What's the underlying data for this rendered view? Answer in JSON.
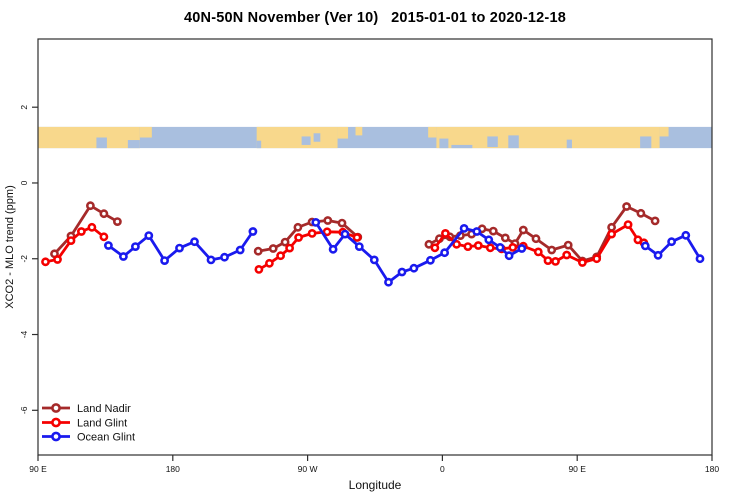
{
  "title": "40N-50N November (Ver 10)   2015-01-01 to 2020-12-18",
  "axes": {
    "x_label": "Longitude",
    "y_label": "XCO2 - MLO trend (ppm)",
    "x_range": [
      90,
      540
    ],
    "y_range": [
      -7.18,
      3.8
    ],
    "x_ticks": [
      {
        "value": 90,
        "label": "90 E"
      },
      {
        "value": 180,
        "label": "180"
      },
      {
        "value": 270,
        "label": "90 W"
      },
      {
        "value": 360,
        "label": "0"
      },
      {
        "value": 450,
        "label": "90 E"
      },
      {
        "value": 540,
        "label": "180"
      }
    ],
    "y_ticks": [
      {
        "value": 2,
        "label": "2"
      },
      {
        "value": 0,
        "label": "0"
      },
      {
        "value": -2,
        "label": "-2"
      },
      {
        "value": -4,
        "label": "-4"
      },
      {
        "value": -6,
        "label": "-6"
      }
    ]
  },
  "legend": {
    "items": [
      {
        "label": "Land Nadir",
        "color": "#A52A2A"
      },
      {
        "label": "Land Glint",
        "color": "#F50000"
      },
      {
        "label": "Ocean Glint",
        "color": "#1A1AEE"
      }
    ]
  },
  "map_band": {
    "description": "40N-50N latitude land/ocean strip drawn across the longitude axis",
    "top_value": 1.48,
    "bottom_value": 0.92,
    "land_color": "#F8D88C",
    "ocean_color": "#A9BFDF",
    "land_rects": [
      [
        90,
        158,
        0,
        1
      ],
      [
        158,
        166,
        0,
        0.5
      ],
      [
        236,
        290,
        0,
        1
      ],
      [
        290,
        297,
        0,
        0.55
      ],
      [
        302,
        306.5,
        0,
        0.4
      ],
      [
        350.5,
        356,
        0,
        0.5
      ],
      [
        356,
        505,
        0,
        1
      ],
      [
        505,
        511,
        0,
        0.45
      ]
    ],
    "ocean_patches": [
      [
        129,
        136,
        0.5,
        1
      ],
      [
        150,
        158,
        0.62,
        1
      ],
      [
        236,
        239,
        0.65,
        1
      ],
      [
        266,
        272,
        0.45,
        0.85
      ],
      [
        274,
        278.5,
        0.3,
        0.7
      ],
      [
        358,
        364,
        0.55,
        1
      ],
      [
        366,
        380,
        0.85,
        1
      ],
      [
        390,
        397,
        0.45,
        0.95
      ],
      [
        404,
        411,
        0.4,
        1
      ],
      [
        443,
        446.5,
        0.6,
        1
      ],
      [
        492,
        499.5,
        0.45,
        1
      ]
    ]
  },
  "chart_data": {
    "type": "line",
    "title": "40N-50N November (Ver 10)   2015-01-01 to 2020-12-18",
    "xlabel": "Longitude",
    "ylabel": "XCO2 - MLO trend (ppm)",
    "x_axis_note": "longitude wraps: 90E > 180 > 90W > 0 > 90E > 180 (axis units 90..540)",
    "xlim": [
      90,
      540
    ],
    "ylim": [
      -7.18,
      3.8
    ],
    "grid": false,
    "legend_position": "bottom-left",
    "series": [
      {
        "name": "Land Nadir",
        "color": "#A52A2A",
        "marker": "open-circle",
        "segments": [
          [
            [
              101,
              -1.87
            ],
            [
              112,
              -1.4
            ],
            [
              125,
              -0.6
            ],
            [
              134,
              -0.81
            ],
            [
              143,
              -1.02
            ]
          ],
          [
            [
              237,
              -1.8
            ],
            [
              247,
              -1.73
            ],
            [
              255,
              -1.56
            ],
            [
              263.5,
              -1.17
            ],
            [
              273,
              -1.03
            ],
            [
              283.5,
              -0.99
            ],
            [
              293,
              -1.06
            ],
            [
              303.5,
              -1.43
            ]
          ],
          [
            [
              351,
              -1.62
            ],
            [
              358,
              -1.47
            ],
            [
              365,
              -1.42
            ],
            [
              372,
              -1.39
            ],
            [
              379.5,
              -1.35
            ],
            [
              386.5,
              -1.21
            ],
            [
              394,
              -1.27
            ],
            [
              402,
              -1.45
            ],
            [
              408.5,
              -1.6
            ],
            [
              414,
              -1.24
            ],
            [
              422.5,
              -1.47
            ],
            [
              433,
              -1.77
            ],
            [
              444,
              -1.64
            ],
            [
              453.5,
              -2.06
            ],
            [
              463,
              -1.95
            ],
            [
              473,
              -1.17
            ],
            [
              483,
              -0.62
            ],
            [
              492.5,
              -0.8
            ],
            [
              502,
              -1.0
            ]
          ]
        ]
      },
      {
        "name": "Land Glint",
        "color": "#F50000",
        "marker": "open-circle",
        "segments": [
          [
            [
              95,
              -2.08
            ],
            [
              103,
              -2.02
            ],
            [
              112,
              -1.52
            ],
            [
              119,
              -1.28
            ],
            [
              126,
              -1.17
            ],
            [
              134,
              -1.42
            ]
          ],
          [
            [
              237.5,
              -2.28
            ],
            [
              244.5,
              -2.12
            ],
            [
              252,
              -1.92
            ],
            [
              258,
              -1.72
            ],
            [
              264,
              -1.44
            ],
            [
              273,
              -1.33
            ],
            [
              283,
              -1.29
            ],
            [
              293.5,
              -1.3
            ],
            [
              303,
              -1.44
            ]
          ],
          [
            [
              355,
              -1.71
            ],
            [
              362,
              -1.33
            ],
            [
              369.5,
              -1.62
            ],
            [
              377,
              -1.68
            ],
            [
              384,
              -1.65
            ],
            [
              392,
              -1.71
            ],
            [
              399.5,
              -1.74
            ],
            [
              407,
              -1.7
            ],
            [
              414,
              -1.67
            ],
            [
              424,
              -1.82
            ],
            [
              430.5,
              -2.05
            ],
            [
              435.5,
              -2.07
            ],
            [
              443,
              -1.9
            ],
            [
              453.5,
              -2.1
            ],
            [
              463,
              -2.0
            ],
            [
              473,
              -1.35
            ],
            [
              484,
              -1.1
            ],
            [
              490.5,
              -1.5
            ],
            [
              494.5,
              -1.58
            ]
          ]
        ]
      },
      {
        "name": "Ocean Glint",
        "color": "#1A1AEE",
        "marker": "open-circle",
        "segments": [
          [
            [
              137,
              -1.65
            ],
            [
              147,
              -1.94
            ],
            [
              155,
              -1.68
            ],
            [
              164,
              -1.39
            ],
            [
              174.5,
              -2.05
            ],
            [
              184.5,
              -1.72
            ],
            [
              194.5,
              -1.55
            ],
            [
              205.5,
              -2.03
            ],
            [
              214.5,
              -1.96
            ],
            [
              225,
              -1.77
            ],
            [
              233.5,
              -1.28
            ]
          ],
          [
            [
              275.5,
              -1.04
            ],
            [
              287,
              -1.75
            ],
            [
              295,
              -1.35
            ],
            [
              304.5,
              -1.68
            ],
            [
              314.5,
              -2.03
            ],
            [
              324,
              -2.62
            ],
            [
              333,
              -2.35
            ],
            [
              341,
              -2.25
            ],
            [
              352,
              -2.04
            ],
            [
              361.5,
              -1.84
            ],
            [
              374.5,
              -1.2
            ],
            [
              383,
              -1.28
            ],
            [
              391,
              -1.5
            ],
            [
              398.5,
              -1.7
            ],
            [
              404.5,
              -1.92
            ],
            [
              413,
              -1.73
            ]
          ],
          [
            [
              495.5,
              -1.66
            ],
            [
              504,
              -1.91
            ],
            [
              513,
              -1.55
            ],
            [
              522.5,
              -1.38
            ],
            [
              532,
              -2.0
            ]
          ]
        ]
      }
    ]
  }
}
